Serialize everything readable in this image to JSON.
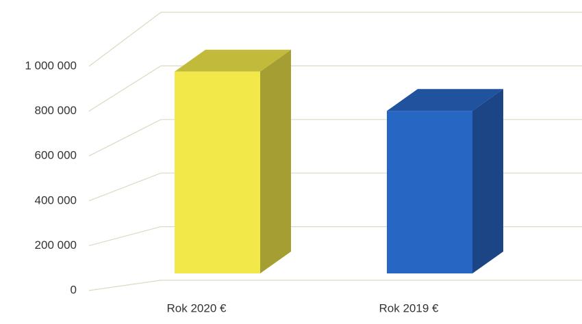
{
  "chart_data": {
    "type": "bar3d",
    "categories": [
      "Rok 2020 €",
      "Rok 2019 €"
    ],
    "series": [
      {
        "values": [
          900000,
          725000
        ],
        "colors": [
          "#f3e84a",
          "#2866c4"
        ]
      }
    ],
    "ylim": [
      0,
      1000000
    ],
    "yticks": [
      0,
      {
        "value": 200000,
        "label": "200 000"
      },
      {
        "value": 400000,
        "label": "400 000"
      },
      {
        "value": 600000,
        "label": "600 000"
      },
      {
        "value": 800000,
        "label": "800 000"
      },
      {
        "value": 1000000,
        "label": "1 000 000"
      }
    ],
    "grid": true
  }
}
